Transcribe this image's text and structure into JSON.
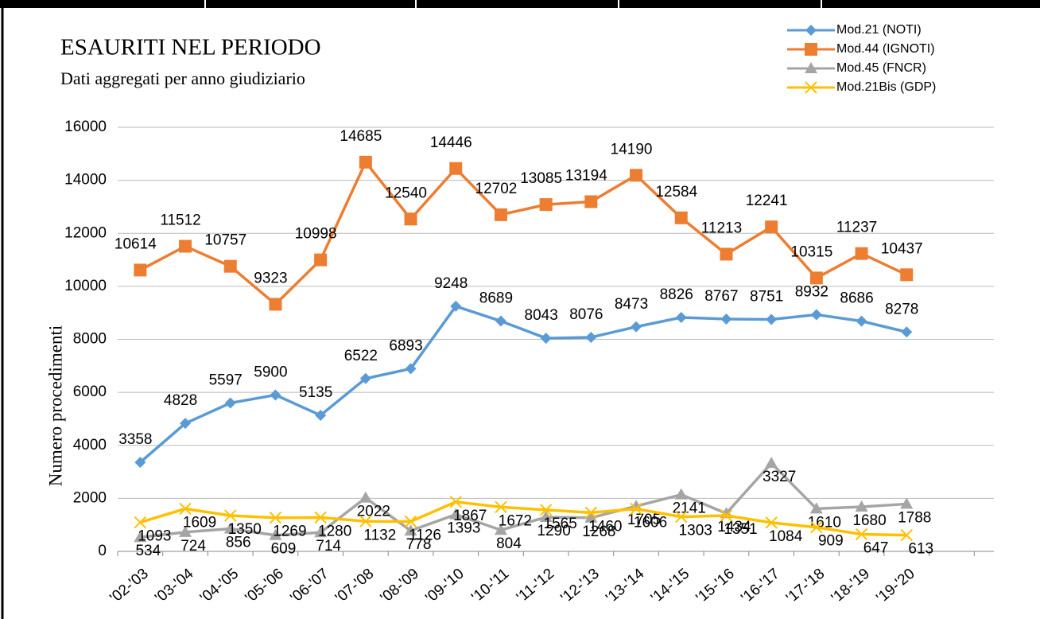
{
  "chart_data": {
    "type": "line",
    "title": "ESAURITI NEL PERIODO",
    "subtitle": "Dati aggregati per anno giudiziario",
    "y_label": "Numero  procedimenti",
    "categories": [
      "'02-'03",
      "'03-'04",
      "'04-'05",
      "'05-'06",
      "'06-'07",
      "'07-'08",
      "'08-'09",
      "'09-'10",
      "'10-'11",
      "'11-'12",
      "'12-'13",
      "'13-'14",
      "'14-'15",
      "'15-'16",
      "'16-'17",
      "'17-'18",
      "'18-'19",
      "'19-'20"
    ],
    "series": [
      {
        "name": "Mod.21 (NOTI)",
        "color": "#5b9bd5",
        "marker": "diamond",
        "values": [
          3358,
          4828,
          5597,
          5900,
          5135,
          6522,
          6893,
          9248,
          8689,
          8043,
          8076,
          8473,
          8826,
          8767,
          8751,
          8932,
          8686,
          8278
        ]
      },
      {
        "name": "Mod.44 (IGNOTI)",
        "color": "#ed7d31",
        "marker": "square",
        "values": [
          10614,
          11512,
          10757,
          9323,
          10998,
          14685,
          12540,
          14446,
          12702,
          13085,
          13194,
          14190,
          12584,
          11213,
          12241,
          10315,
          11237,
          10437
        ]
      },
      {
        "name": "Mod.45 (FNCR)",
        "color": "#a5a5a5",
        "marker": "triangle",
        "values": [
          534,
          724,
          856,
          609,
          714,
          2022,
          778,
          1393,
          804,
          1290,
          1268,
          1705,
          2141,
          1434,
          3327,
          1610,
          1680,
          1788
        ]
      },
      {
        "name": "Mod.21Bis (GDP)",
        "color": "#ffc000",
        "marker": "x",
        "values": [
          1093,
          1609,
          1350,
          1269,
          1280,
          1132,
          1126,
          1867,
          1672,
          1565,
          1460,
          1606,
          1303,
          1351,
          1084,
          909,
          647,
          613
        ]
      }
    ],
    "ylim": [
      0,
      16000
    ],
    "yticks": [
      0,
      2000,
      4000,
      6000,
      8000,
      10000,
      12000,
      14000,
      16000
    ],
    "grid": true,
    "legend": "top-right"
  }
}
